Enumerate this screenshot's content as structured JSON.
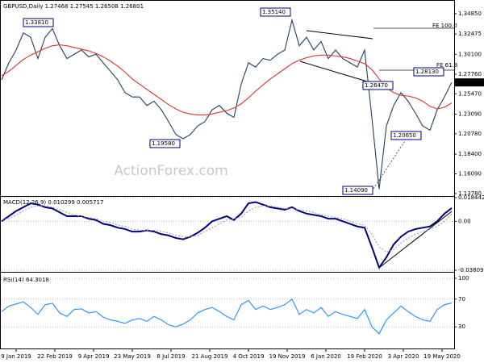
{
  "chart_data": [
    {
      "type": "line",
      "header": "GBPUSD,Daily  1.27468 1.27545 1.26508 1.26801",
      "watermark": "ActionForex.com",
      "xlim": [
        0,
        374
      ],
      "x": [
        0,
        6,
        12,
        18,
        24,
        30,
        36,
        42,
        48,
        54,
        60,
        66,
        72,
        78,
        84,
        90,
        96,
        102,
        108,
        114,
        120,
        126,
        132,
        138,
        144,
        150,
        156,
        162,
        168,
        174,
        180,
        186,
        192,
        198,
        204,
        210,
        216,
        222,
        228,
        234,
        240,
        246,
        252,
        258,
        264,
        270,
        276,
        282,
        288,
        294,
        300,
        306,
        312,
        318,
        324,
        330,
        336,
        342,
        348,
        354,
        360,
        366,
        372
      ],
      "ylim": [
        1.1349,
        1.3627
      ],
      "yticks": [
        {
          "value": 1.3485,
          "label": "1.34850"
        },
        {
          "value": 1.32475,
          "label": "1.32475"
        },
        {
          "value": 1.301,
          "label": "1.30100"
        },
        {
          "value": 1.2776,
          "label": "1.27760"
        },
        {
          "value": 1.2547,
          "label": "1.25470"
        },
        {
          "value": 1.2309,
          "label": "1.23090"
        },
        {
          "value": 1.2078,
          "label": "1.20780"
        },
        {
          "value": 1.184,
          "label": "1.18400"
        },
        {
          "value": 1.1609,
          "label": "1.16090"
        },
        {
          "value": 1.1378,
          "label": "1.13780"
        }
      ],
      "last_price": 1.26801,
      "annotations": [
        "1.33810",
        "1.35140",
        "1.19580",
        "1.14090",
        "1.20650",
        "1.26470",
        "1.28130",
        "FE 100.0",
        "FE 61.8"
      ],
      "series": [
        {
          "color": "#1f3f66",
          "values": [
            1.271,
            1.291,
            1.306,
            1.326,
            1.321,
            1.296,
            1.321,
            1.331,
            1.311,
            1.296,
            1.301,
            1.306,
            1.298,
            1.301,
            1.291,
            1.281,
            1.271,
            1.256,
            1.251,
            1.251,
            1.241,
            1.246,
            1.236,
            1.222,
            1.207,
            1.202,
            1.207,
            1.217,
            1.222,
            1.236,
            1.241,
            1.232,
            1.227,
            1.266,
            1.291,
            1.286,
            1.296,
            1.294,
            1.301,
            1.306,
            1.341,
            1.311,
            1.321,
            1.306,
            1.316,
            1.296,
            1.306,
            1.296,
            1.291,
            1.286,
            1.306,
            1.227,
            1.143,
            1.217,
            1.241,
            1.256,
            1.246,
            1.232,
            1.217,
            1.212,
            1.236,
            1.251,
            1.268
          ]
        },
        {
          "color": "#e03030",
          "values": [
            1.276,
            1.281,
            1.288,
            1.295,
            1.3,
            1.304,
            1.308,
            1.311,
            1.312,
            1.311,
            1.309,
            1.307,
            1.305,
            1.302,
            1.298,
            1.293,
            1.287,
            1.28,
            1.272,
            1.266,
            1.26,
            1.254,
            1.248,
            1.242,
            1.237,
            1.233,
            1.231,
            1.23,
            1.23,
            1.231,
            1.233,
            1.235,
            1.238,
            1.243,
            1.25,
            1.258,
            1.265,
            1.272,
            1.278,
            1.284,
            1.29,
            1.294,
            1.297,
            1.299,
            1.3,
            1.3,
            1.299,
            1.298,
            1.296,
            1.293,
            1.29,
            1.283,
            1.272,
            1.262,
            1.256,
            1.253,
            1.252,
            1.25,
            1.246,
            1.24,
            1.237,
            1.239,
            1.244
          ]
        }
      ]
    },
    {
      "type": "line",
      "header": "MACD(12,26,9) 0.010299 0.005717",
      "xlim": [
        0,
        374
      ],
      "x": [
        0,
        6,
        12,
        18,
        24,
        30,
        36,
        42,
        48,
        54,
        60,
        66,
        72,
        78,
        84,
        90,
        96,
        102,
        108,
        114,
        120,
        126,
        132,
        138,
        144,
        150,
        156,
        162,
        168,
        174,
        180,
        186,
        192,
        198,
        204,
        210,
        216,
        222,
        228,
        234,
        240,
        246,
        252,
        258,
        264,
        270,
        276,
        282,
        288,
        294,
        300,
        306,
        312,
        318,
        324,
        330,
        336,
        342,
        348,
        354,
        360,
        366,
        372
      ],
      "ylim": [
        -0.038095,
        0.018442
      ],
      "yticks": [
        0.018442,
        {
          "value": 0,
          "label": "0.00"
        },
        -0.038095
      ],
      "grid": true,
      "series": [
        {
          "color": "#000080",
          "values": [
            0,
            0.004,
            0.008,
            0.011,
            0.014,
            0.013,
            0.011,
            0.01,
            0.007,
            0.004,
            0.004,
            0.004,
            0.002,
            0.001,
            -0.002,
            -0.003,
            -0.005,
            -0.006,
            -0.008,
            -0.008,
            -0.007,
            -0.008,
            -0.01,
            -0.011,
            -0.013,
            -0.014,
            -0.012,
            -0.009,
            -0.005,
            0,
            0.002,
            0.004,
            0.001,
            0.006,
            0.014,
            0.015,
            0.013,
            0.011,
            0.01,
            0.009,
            0.011,
            0.008,
            0.006,
            0.005,
            0.004,
            0.002,
            0.002,
            0,
            -0.002,
            -0.004,
            -0.005,
            -0.02,
            -0.036,
            -0.028,
            -0.018,
            -0.012,
            -0.008,
            -0.006,
            -0.005,
            -0.004,
            0,
            0.006,
            0.010299
          ]
        },
        {
          "color": "#a0a0a0",
          "dashed": true,
          "values": [
            0.001,
            0.002,
            0.005,
            0.008,
            0.011,
            0.012,
            0.012,
            0.011,
            0.009,
            0.007,
            0.005,
            0.004,
            0.003,
            0.002,
            0,
            -0.001,
            -0.003,
            -0.004,
            -0.006,
            -0.007,
            -0.007,
            -0.007,
            -0.008,
            -0.009,
            -0.011,
            -0.012,
            -0.012,
            -0.011,
            -0.008,
            -0.005,
            -0.002,
            0.001,
            0.002,
            0.003,
            0.008,
            0.011,
            0.012,
            0.012,
            0.011,
            0.01,
            0.01,
            0.009,
            0.008,
            0.007,
            0.005,
            0.004,
            0.003,
            0.002,
            0,
            -0.002,
            -0.003,
            -0.01,
            -0.02,
            -0.024,
            -0.022,
            -0.017,
            -0.013,
            -0.01,
            -0.008,
            -0.006,
            -0.004,
            0,
            0.005717
          ]
        }
      ]
    },
    {
      "type": "line",
      "header": "RSI(14) 64.3018",
      "xlim": [
        0,
        374
      ],
      "x": [
        0,
        6,
        12,
        18,
        24,
        30,
        36,
        42,
        48,
        54,
        60,
        66,
        72,
        78,
        84,
        90,
        96,
        102,
        108,
        114,
        120,
        126,
        132,
        138,
        144,
        150,
        156,
        162,
        168,
        174,
        180,
        186,
        192,
        198,
        204,
        210,
        216,
        222,
        228,
        234,
        240,
        246,
        252,
        258,
        264,
        270,
        276,
        282,
        288,
        294,
        300,
        306,
        312,
        318,
        324,
        330,
        336,
        342,
        348,
        354,
        360,
        366,
        372
      ],
      "ylim": [
        0,
        100
      ],
      "yticks": [
        100,
        70,
        30
      ],
      "grid": true,
      "xticks": [
        {
          "value": 12,
          "label": "9 Jan 2019"
        },
        {
          "value": 44,
          "label": "22 Feb 2019"
        },
        {
          "value": 76,
          "label": "9 Apr 2019"
        },
        {
          "value": 108,
          "label": "23 May 2019"
        },
        {
          "value": 140,
          "label": "8 Jul 2019"
        },
        {
          "value": 172,
          "label": "21 Aug 2019"
        },
        {
          "value": 204,
          "label": "4 Oct 2019"
        },
        {
          "value": 236,
          "label": "19 Nov 2019"
        },
        {
          "value": 268,
          "label": "6 Jan 2020"
        },
        {
          "value": 300,
          "label": "19 Feb 2020"
        },
        {
          "value": 332,
          "label": "3 Apr 2020"
        },
        {
          "value": 364,
          "label": "19 May 2020"
        }
      ],
      "series": [
        {
          "color": "#1e90ff",
          "values": [
            52,
            60,
            63,
            66,
            58,
            48,
            62,
            64,
            50,
            45,
            55,
            56,
            50,
            52,
            44,
            40,
            38,
            35,
            40,
            42,
            38,
            45,
            40,
            33,
            30,
            34,
            40,
            50,
            55,
            58,
            52,
            45,
            40,
            62,
            68,
            55,
            60,
            55,
            58,
            62,
            70,
            48,
            55,
            50,
            58,
            45,
            52,
            48,
            45,
            42,
            55,
            30,
            20,
            40,
            50,
            60,
            52,
            45,
            40,
            38,
            55,
            62,
            64.3018
          ]
        }
      ]
    }
  ]
}
